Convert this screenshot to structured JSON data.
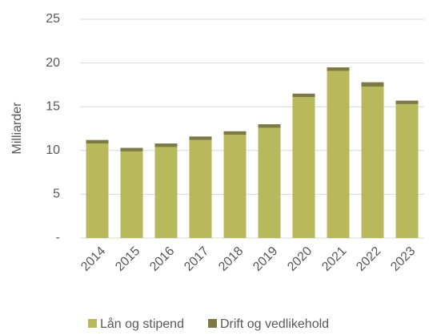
{
  "chart_data": {
    "type": "stacked-bar",
    "y_label": "Milliarder",
    "categories": [
      "2014",
      "2015",
      "2016",
      "2017",
      "2018",
      "2019",
      "2020",
      "2021",
      "2022",
      "2023"
    ],
    "series": [
      {
        "name": "Lån og stipend",
        "color": "#b8b85c",
        "values": [
          10.8,
          9.9,
          10.4,
          11.2,
          11.8,
          12.6,
          16.1,
          19.1,
          17.3,
          15.3
        ]
      },
      {
        "name": "Drift og vedlikehold",
        "color": "#7b7a45",
        "values": [
          0.4,
          0.4,
          0.4,
          0.4,
          0.4,
          0.4,
          0.4,
          0.4,
          0.5,
          0.4
        ]
      }
    ],
    "ylim": [
      0,
      25
    ],
    "yticks": [
      {
        "value": 0,
        "label": "-"
      },
      5,
      10,
      15,
      20,
      25
    ],
    "grid": true,
    "legend": "bottom"
  }
}
